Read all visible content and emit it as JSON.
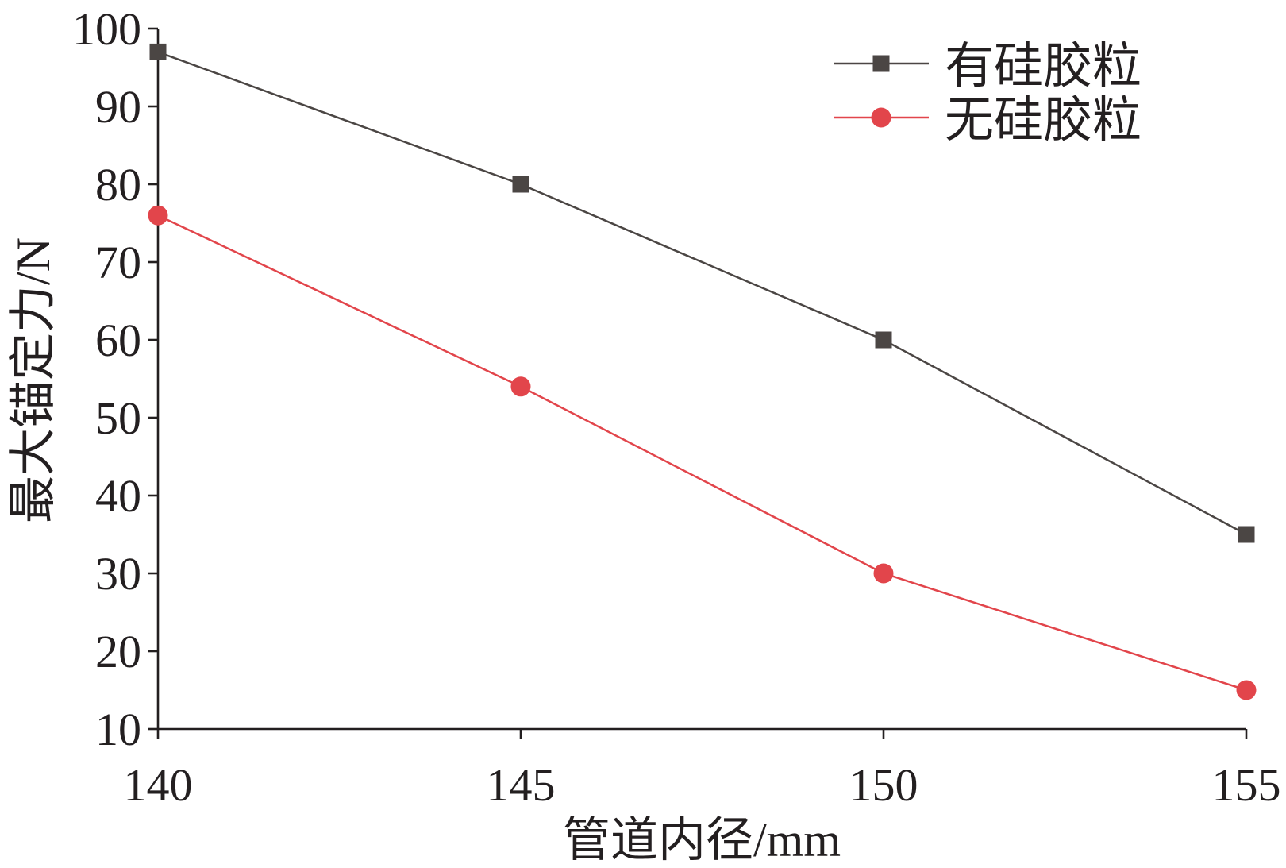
{
  "chart_data": {
    "type": "line",
    "x": [
      140,
      145,
      150,
      155
    ],
    "series": [
      {
        "name": "有硅胶粒",
        "values": [
          97,
          80,
          60,
          35
        ],
        "color": "#4b4644",
        "marker": "square"
      },
      {
        "name": "无硅胶粒",
        "values": [
          76,
          54,
          30,
          15
        ],
        "color": "#e2454b",
        "marker": "circle"
      }
    ],
    "xlabel": "管道内径/mm",
    "ylabel": "最大锚定力/N",
    "xlim": [
      140,
      155
    ],
    "ylim": [
      10,
      100
    ],
    "xticks": [
      140,
      145,
      150,
      155
    ],
    "yticks": [
      10,
      20,
      30,
      40,
      50,
      60,
      70,
      80,
      90,
      100
    ],
    "grid": false,
    "legend": "top-right"
  }
}
